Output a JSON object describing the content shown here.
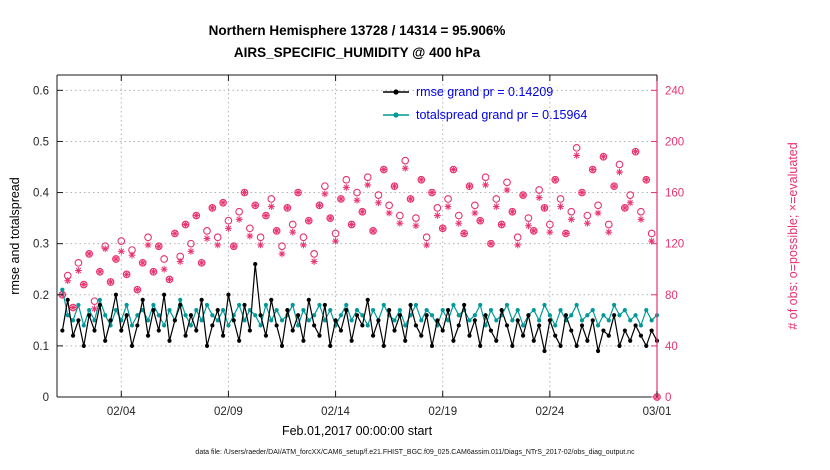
{
  "title": {
    "line1": "Northern Hemisphere 13728 / 14314 = 95.906%",
    "line2": "AIRS_SPECIFIC_HUMIDITY @ 400 hPa"
  },
  "legend": {
    "text_color": "#0000e6",
    "items": [
      {
        "label": "rmse grand pr = 0.14209",
        "series": "rmse",
        "color": "#000000"
      },
      {
        "label": "totalspread grand pr = 0.15964",
        "series": "totalspread",
        "color": "#009999"
      }
    ]
  },
  "footer": "data file: /Users/raeder/DAI/ATM_forcXX/CAM6_setup/f.e21.FHIST_BGC.f09_025.CAM6assim.011/Diags_NTrS_2017-02/obs_diag_output.nc",
  "colors": {
    "rmse": "#000000",
    "totalspread": "#009999",
    "counts": "#e8336d",
    "grid": "#b3b3b3",
    "axis": "#1a1a1a",
    "tick_text": "#262626"
  },
  "chart_data": {
    "type": "line",
    "title": "Northern Hemisphere 13728 / 14314 = 95.906% | AIRS_SPECIFIC_HUMIDITY @ 400 hPa",
    "xlabel": "Feb.01,2017 00:00:00 start",
    "x_domain": [
      1,
      29
    ],
    "x_start_day": 1.25,
    "x_step_days": 0.25,
    "x_ticks": [
      {
        "day": 4,
        "label": "02/04"
      },
      {
        "day": 9,
        "label": "02/09"
      },
      {
        "day": 14,
        "label": "02/14"
      },
      {
        "day": 19,
        "label": "02/19"
      },
      {
        "day": 24,
        "label": "02/24"
      },
      {
        "day": 29,
        "label": "03/01"
      }
    ],
    "y_left": {
      "label": "rmse and totalspread",
      "min": 0,
      "max": 0.6,
      "axis_max": 0.63,
      "ticks": [
        0,
        0.1,
        0.2,
        0.3,
        0.4,
        0.5,
        0.6
      ]
    },
    "y_right": {
      "label": "# of obs: o=possible; ×=evaluated",
      "min": 0,
      "max": 240,
      "axis_max": 252,
      "ticks": [
        0,
        40,
        80,
        120,
        160,
        200,
        240
      ]
    },
    "grid": true,
    "legend_position": "top-center-inside",
    "series": [
      {
        "name": "rmse",
        "axis": "left",
        "style": "line-dot",
        "color": "#000000",
        "values": [
          0.13,
          0.19,
          0.12,
          0.15,
          0.1,
          0.16,
          0.13,
          0.18,
          0.11,
          0.15,
          0.2,
          0.13,
          0.16,
          0.1,
          0.14,
          0.19,
          0.12,
          0.17,
          0.13,
          0.2,
          0.11,
          0.15,
          0.18,
          0.12,
          0.16,
          0.13,
          0.19,
          0.1,
          0.14,
          0.17,
          0.12,
          0.2,
          0.15,
          0.11,
          0.18,
          0.13,
          0.26,
          0.16,
          0.12,
          0.19,
          0.14,
          0.1,
          0.17,
          0.13,
          0.16,
          0.11,
          0.19,
          0.14,
          0.12,
          0.18,
          0.1,
          0.15,
          0.13,
          0.17,
          0.11,
          0.16,
          0.14,
          0.19,
          0.12,
          0.15,
          0.1,
          0.17,
          0.13,
          0.16,
          0.11,
          0.18,
          0.14,
          0.12,
          0.16,
          0.1,
          0.15,
          0.13,
          0.17,
          0.11,
          0.14,
          0.18,
          0.12,
          0.15,
          0.1,
          0.16,
          0.13,
          0.11,
          0.17,
          0.14,
          0.1,
          0.15,
          0.12,
          0.16,
          0.11,
          0.14,
          0.09,
          0.15,
          0.12,
          0.1,
          0.16,
          0.13,
          0.1,
          0.14,
          0.11,
          0.15,
          0.09,
          0.13,
          0.12,
          0.16,
          0.1,
          0.13,
          0.11,
          0.14,
          0.12,
          0.1,
          0.13,
          0.11
        ]
      },
      {
        "name": "totalspread",
        "axis": "left",
        "style": "line-dot",
        "color": "#009999",
        "values": [
          0.21,
          0.16,
          0.15,
          0.18,
          0.14,
          0.17,
          0.15,
          0.19,
          0.16,
          0.14,
          0.17,
          0.15,
          0.18,
          0.14,
          0.16,
          0.17,
          0.15,
          0.18,
          0.16,
          0.14,
          0.17,
          0.15,
          0.19,
          0.16,
          0.14,
          0.17,
          0.15,
          0.18,
          0.16,
          0.15,
          0.17,
          0.14,
          0.16,
          0.18,
          0.15,
          0.17,
          0.16,
          0.14,
          0.18,
          0.15,
          0.17,
          0.15,
          0.16,
          0.18,
          0.14,
          0.17,
          0.15,
          0.16,
          0.18,
          0.15,
          0.17,
          0.14,
          0.16,
          0.18,
          0.15,
          0.17,
          0.16,
          0.14,
          0.17,
          0.15,
          0.18,
          0.16,
          0.15,
          0.17,
          0.14,
          0.16,
          0.18,
          0.15,
          0.17,
          0.16,
          0.14,
          0.17,
          0.15,
          0.18,
          0.16,
          0.17,
          0.15,
          0.16,
          0.18,
          0.14,
          0.17,
          0.15,
          0.16,
          0.18,
          0.15,
          0.17,
          0.14,
          0.16,
          0.17,
          0.15,
          0.18,
          0.16,
          0.14,
          0.17,
          0.15,
          0.16,
          0.18,
          0.15,
          0.16,
          0.17,
          0.14,
          0.16,
          0.15,
          0.18,
          0.16,
          0.17,
          0.15,
          0.16,
          0.14,
          0.17,
          0.15,
          0.16
        ]
      },
      {
        "name": "possible",
        "axis": "right",
        "style": "marker",
        "marker": "circle",
        "color": "#e8336d",
        "values": [
          80,
          95,
          70,
          105,
          88,
          112,
          75,
          98,
          118,
          90,
          108,
          122,
          96,
          115,
          84,
          105,
          125,
          98,
          118,
          108,
          92,
          128,
          110,
          135,
          120,
          142,
          105,
          130,
          148,
          125,
          152,
          138,
          118,
          145,
          160,
          132,
          150,
          125,
          142,
          155,
          130,
          118,
          148,
          135,
          160,
          125,
          138,
          112,
          150,
          165,
          140,
          128,
          155,
          170,
          135,
          160,
          145,
          172,
          130,
          158,
          178,
          150,
          165,
          142,
          185,
          155,
          140,
          170,
          125,
          160,
          148,
          132,
          155,
          178,
          142,
          128,
          165,
          150,
          138,
          172,
          120,
          155,
          135,
          168,
          145,
          125,
          158,
          140,
          130,
          162,
          148,
          135,
          170,
          155,
          128,
          145,
          195,
          160,
          142,
          178,
          150,
          188,
          135,
          165,
          182,
          148,
          158,
          192,
          145,
          170,
          128,
          0
        ]
      },
      {
        "name": "evaluated",
        "axis": "right",
        "style": "marker",
        "marker": "asterisk",
        "color": "#e8336d",
        "values": [
          80,
          91,
          70,
          99,
          88,
          112,
          69,
          98,
          116,
          90,
          108,
          114,
          96,
          111,
          84,
          105,
          119,
          98,
          118,
          100,
          92,
          128,
          106,
          135,
          114,
          142,
          105,
          124,
          148,
          119,
          152,
          132,
          118,
          139,
          160,
          126,
          150,
          119,
          142,
          149,
          130,
          112,
          148,
          129,
          160,
          119,
          138,
          106,
          150,
          159,
          140,
          122,
          155,
          164,
          135,
          154,
          145,
          166,
          130,
          152,
          178,
          144,
          165,
          136,
          179,
          155,
          134,
          170,
          119,
          160,
          142,
          132,
          149,
          178,
          136,
          128,
          165,
          144,
          138,
          166,
          120,
          149,
          135,
          162,
          145,
          119,
          158,
          134,
          130,
          156,
          148,
          129,
          170,
          149,
          128,
          139,
          189,
          160,
          136,
          178,
          144,
          188,
          129,
          165,
          176,
          148,
          152,
          192,
          139,
          170,
          122,
          0
        ]
      }
    ]
  }
}
